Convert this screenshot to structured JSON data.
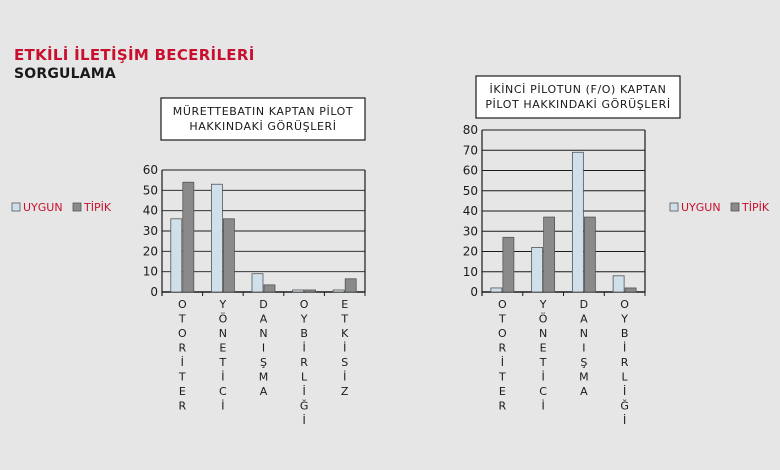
{
  "heading": {
    "title": "ETKİLİ İLETİŞİM BECERİLERİ",
    "subtitle": "SORGULAMA"
  },
  "colors": {
    "accent": "#c8102e",
    "uygun": "#cfe0ea",
    "tipik": "#8a8a8a",
    "background": "#e6e6e6"
  },
  "chart_data": [
    {
      "type": "bar",
      "title_lines": [
        "MÜRETTEBATIN KAPTAN PİLOT",
        "HAKKINDAKİ GÖRÜŞLERİ"
      ],
      "categories": [
        "OTORİTER",
        "YÖNETİCİ",
        "DANIŞMA",
        "OY BİRLİĞİ",
        "ETKİSİZ"
      ],
      "series": [
        {
          "name": "UYGUN",
          "values": [
            36,
            53,
            9,
            1,
            1
          ]
        },
        {
          "name": "TİPİK",
          "values": [
            54,
            36,
            3.5,
            1,
            6.5
          ]
        }
      ],
      "ylim": [
        0,
        60
      ],
      "yticks": [
        0,
        10,
        20,
        30,
        40,
        50,
        60
      ],
      "grid": true,
      "legend_position": "left"
    },
    {
      "type": "bar",
      "title_lines": [
        "İKİNCİ PİLOTUN (F/O) KAPTAN",
        "PİLOT HAKKINDAKİ GÖRÜŞLERİ"
      ],
      "categories": [
        "OTORİTER",
        "YÖNETİCİ",
        "DANIŞMA",
        "OY BİRLİĞİ"
      ],
      "series": [
        {
          "name": "UYGUN",
          "values": [
            2,
            22,
            69,
            8
          ]
        },
        {
          "name": "TİPİK",
          "values": [
            27,
            37,
            37,
            2
          ]
        }
      ],
      "ylim": [
        0,
        80
      ],
      "yticks": [
        0,
        10,
        20,
        30,
        40,
        50,
        60,
        70,
        80
      ],
      "grid": true,
      "legend_position": "right"
    }
  ]
}
